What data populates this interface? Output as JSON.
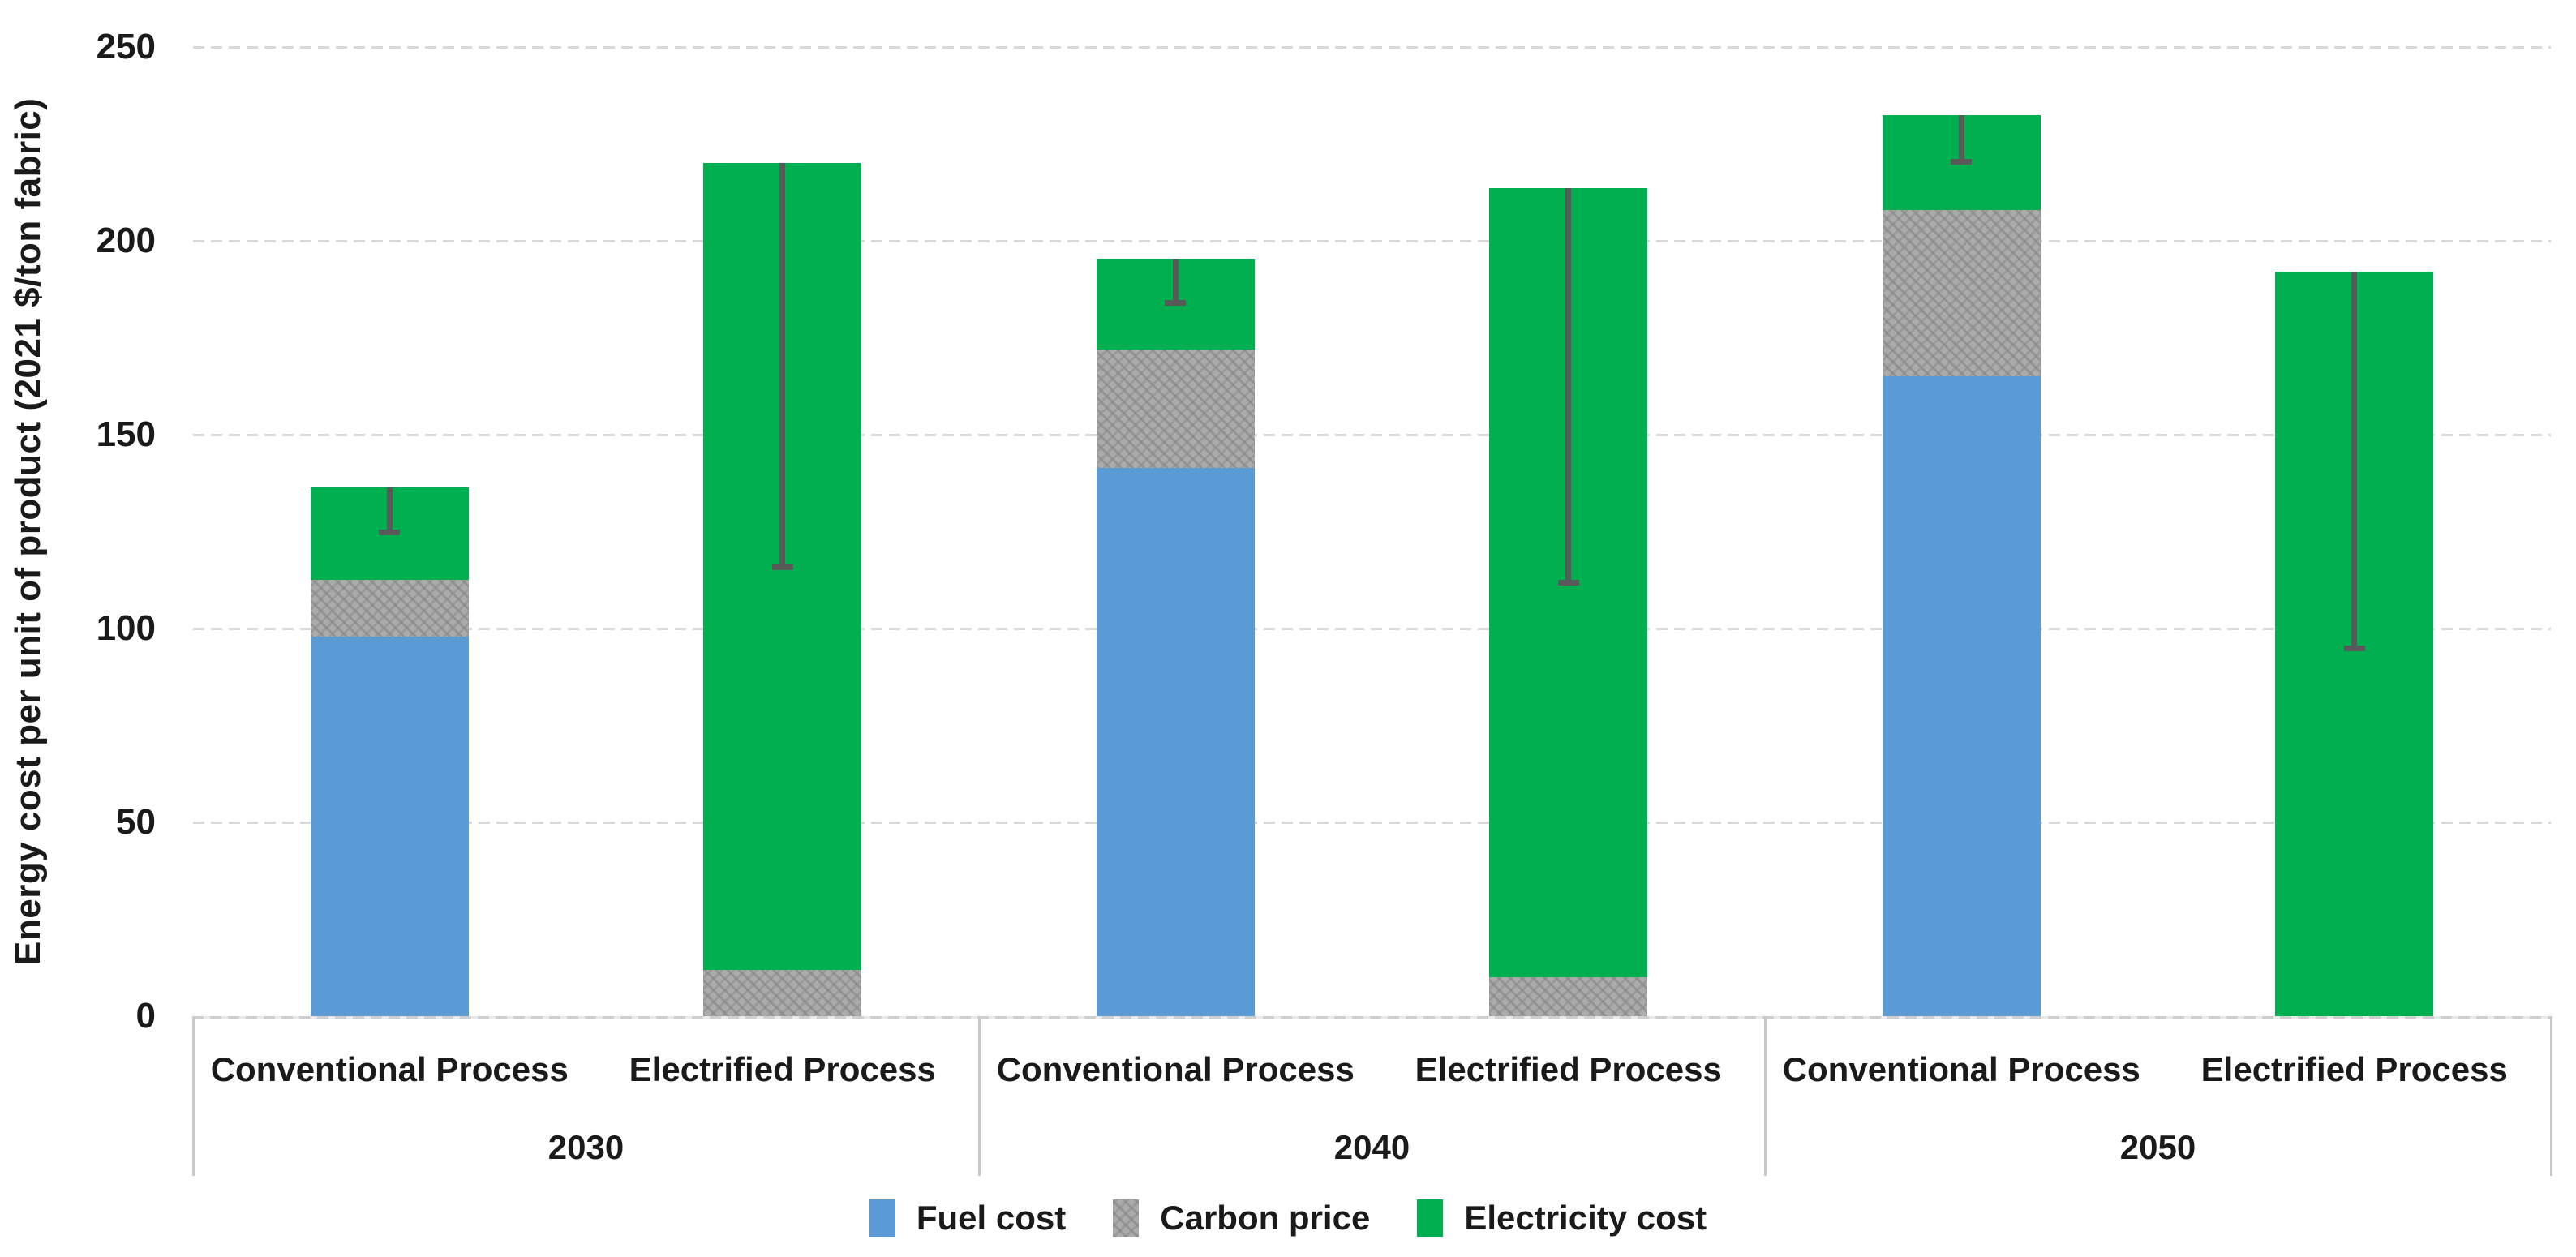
{
  "chart_data": {
    "type": "bar",
    "stacked": true,
    "title": "",
    "ylabel": "Energy cost per unit of product (2021 $/ton fabric)",
    "xlabel": "",
    "ylim": [
      0,
      250
    ],
    "yticks": [
      0,
      50,
      100,
      150,
      200,
      250
    ],
    "grid": true,
    "gridline_color": "#d9d9d9",
    "legend_position": "bottom",
    "groups": [
      {
        "label": "2030",
        "categories": [
          "Conventional Process",
          "Electrified Process"
        ]
      },
      {
        "label": "2040",
        "categories": [
          "Conventional Process",
          "Electrified Process"
        ]
      },
      {
        "label": "2050",
        "categories": [
          "Conventional Process",
          "Electrified Process"
        ]
      }
    ],
    "series": [
      {
        "name": "Fuel cost",
        "color": "#5B9BD5",
        "pattern": "solid",
        "values": [
          98,
          0,
          141.5,
          0,
          165,
          0
        ]
      },
      {
        "name": "Carbon price",
        "color": "#ABABAB",
        "pattern": "dotted",
        "values": [
          14.5,
          12,
          30.5,
          10,
          43,
          0
        ]
      },
      {
        "name": "Electricity cost",
        "color": "#00B050",
        "pattern": "solid",
        "values": [
          24,
          208,
          23.5,
          203.5,
          24.5,
          192
        ]
      }
    ],
    "stack_totals": [
      136.5,
      220,
      195.5,
      213.5,
      232.5,
      192
    ],
    "error_bars": {
      "direction": "minus",
      "color": "#595959",
      "low_values": [
        125,
        116,
        184,
        112,
        220.5,
        95
      ]
    }
  },
  "colors": {
    "fuel": "#5B9BD5",
    "carbon": "#ABABAB",
    "electricity": "#00B050",
    "error_bar": "#595959",
    "gridline": "#D9D9D9",
    "axis_line": "#C9C9C9",
    "text": "#1A1A1A",
    "background": "#FFFFFF"
  }
}
